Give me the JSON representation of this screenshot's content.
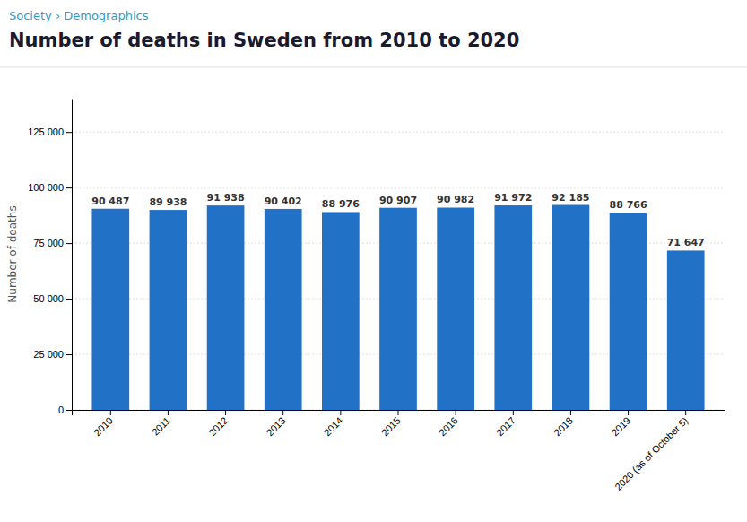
{
  "chart_data": {
    "type": "bar",
    "title": "Number of deaths in Sweden from 2010 to 2020",
    "subtitle": "Society › Demographics",
    "ylabel": "Number of deaths",
    "categories": [
      "2010",
      "2011",
      "2012",
      "2013",
      "2014",
      "2015",
      "2016",
      "2017",
      "2018",
      "2019",
      "2020 (as of October 5)"
    ],
    "values": [
      90487,
      89938,
      91938,
      90402,
      88976,
      90907,
      90982,
      91972,
      92185,
      88766,
      71647
    ],
    "value_labels": [
      "90 487",
      "89 938",
      "91 938",
      "90 402",
      "88 976",
      "90 907",
      "90 982",
      "91 972",
      "92 185",
      "88 766",
      "71 647"
    ],
    "data_labels": true,
    "color": "#2171c7",
    "ylim": [
      0,
      140000
    ],
    "yticks": [
      0,
      {
        "value": 25000,
        "label": "25 000"
      },
      {
        "value": 50000,
        "label": "50 000"
      },
      {
        "value": 75000,
        "label": "75 000"
      },
      {
        "value": 100000,
        "label": "100 000"
      },
      {
        "value": 125000,
        "label": "125 000"
      }
    ],
    "grid": true
  }
}
